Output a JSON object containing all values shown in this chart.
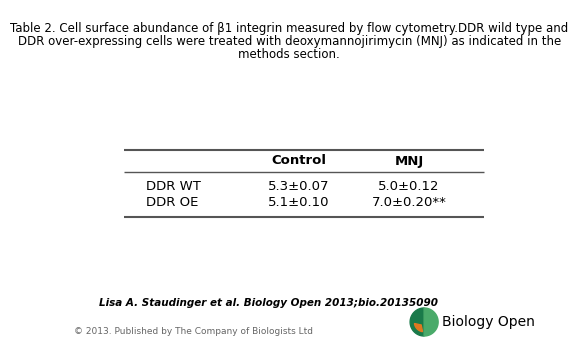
{
  "title_line1": "Table 2. Cell surface abundance of β1 integrin measured by flow cytometry.DDR wild type and",
  "title_line2": "DDR over-expressing cells were treated with deoxymannojirimycin (MNJ) as indicated in the",
  "title_line3": "methods section.",
  "col_headers": [
    "Control",
    "MNJ"
  ],
  "row_labels": [
    "DDR WT",
    "DDR OE"
  ],
  "cell_data": [
    [
      "5.3±0.07",
      "5.0±0.12"
    ],
    [
      "5.1±0.10",
      "7.0±0.20**"
    ]
  ],
  "footer_citation": "Lisa A. Staudinger et al. Biology Open 2013;bio.20135090",
  "footer_copyright": "© 2013. Published by The Company of Biologists Ltd",
  "bg_color": "#ffffff",
  "text_color": "#000000",
  "title_fontsize": 8.5,
  "table_fontsize": 9.5,
  "footer_fontsize": 7.5,
  "copyright_fontsize": 6.5,
  "logo_text": "Biology Open",
  "logo_text_fontsize": 10
}
